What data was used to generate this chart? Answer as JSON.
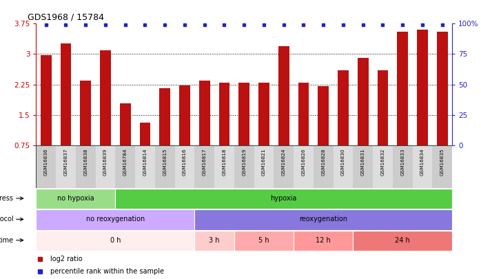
{
  "title": "GDS1968 / 15784",
  "samples": [
    "GSM16836",
    "GSM16837",
    "GSM16838",
    "GSM16839",
    "GSM16784",
    "GSM16814",
    "GSM16815",
    "GSM16816",
    "GSM16817",
    "GSM16818",
    "GSM16819",
    "GSM16821",
    "GSM16824",
    "GSM16826",
    "GSM16828",
    "GSM16830",
    "GSM16831",
    "GSM16832",
    "GSM16833",
    "GSM16834",
    "GSM16835"
  ],
  "log2_values": [
    2.97,
    3.27,
    2.35,
    3.1,
    1.78,
    1.3,
    2.15,
    2.22,
    2.35,
    2.3,
    2.3,
    2.3,
    3.2,
    2.3,
    2.2,
    2.6,
    2.9,
    2.6,
    3.55,
    3.6,
    3.55
  ],
  "bar_color": "#bb1111",
  "dot_color": "#2222cc",
  "ylim_left": [
    0.75,
    3.75
  ],
  "ylim_right": [
    0,
    100
  ],
  "yticks_left": [
    0.75,
    1.5,
    2.25,
    3.0,
    3.75
  ],
  "ytick_labels_left": [
    "0.75",
    "1.5",
    "2.25",
    "3",
    "3.75"
  ],
  "yticks_right": [
    0,
    25,
    50,
    75,
    100
  ],
  "ytick_labels_right": [
    "0",
    "25",
    "50",
    "75",
    "100%"
  ],
  "grid_lines": [
    1.5,
    2.25,
    3.0
  ],
  "stress_labels": [
    {
      "text": "no hypoxia",
      "start": 0,
      "end": 4,
      "color": "#99dd88"
    },
    {
      "text": "hypoxia",
      "start": 4,
      "end": 21,
      "color": "#55cc44"
    }
  ],
  "protocol_labels": [
    {
      "text": "no reoxygenation",
      "start": 0,
      "end": 8,
      "color": "#ccaaff"
    },
    {
      "text": "reoxygenation",
      "start": 8,
      "end": 21,
      "color": "#8877dd"
    }
  ],
  "time_labels": [
    {
      "text": "0 h",
      "start": 0,
      "end": 8,
      "color": "#ffeeee"
    },
    {
      "text": "3 h",
      "start": 8,
      "end": 10,
      "color": "#ffcccc"
    },
    {
      "text": "5 h",
      "start": 10,
      "end": 13,
      "color": "#ffaaaa"
    },
    {
      "text": "12 h",
      "start": 13,
      "end": 16,
      "color": "#ff9999"
    },
    {
      "text": "24 h",
      "start": 16,
      "end": 21,
      "color": "#ee7777"
    }
  ],
  "legend_items": [
    {
      "label": "log2 ratio",
      "color": "#bb1111"
    },
    {
      "label": "percentile rank within the sample",
      "color": "#2222cc"
    }
  ],
  "bg_color": "#ffffff",
  "left_axis_color": "#cc0000",
  "right_axis_color": "#2222cc"
}
